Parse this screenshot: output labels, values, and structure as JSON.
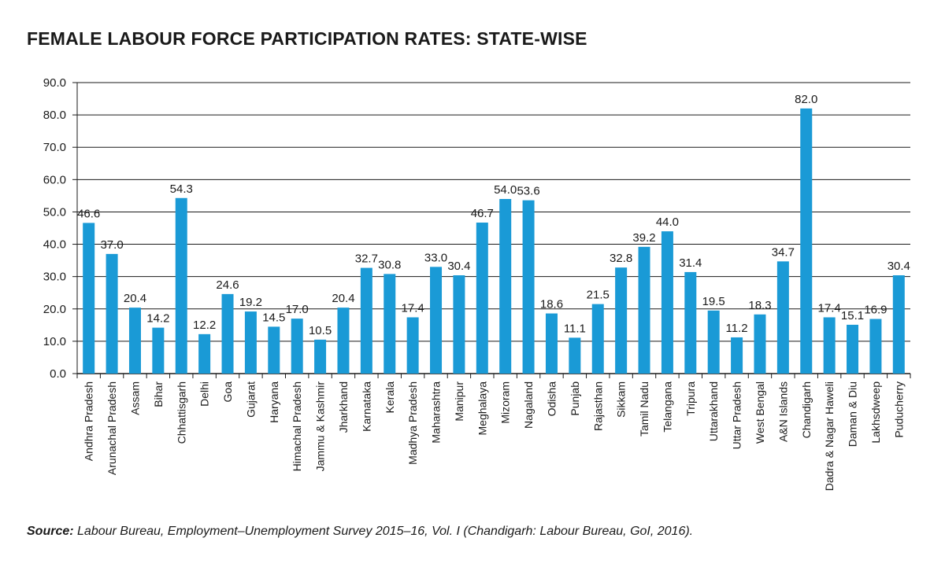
{
  "chart_data": {
    "type": "bar",
    "title": "FEMALE LABOUR FORCE PARTICIPATION RATES: STATE-WISE",
    "ylim": [
      0,
      90
    ],
    "yticks": [
      "0.0",
      "10.0",
      "20.0",
      "30.0",
      "40.0",
      "50.0",
      "60.0",
      "70.0",
      "80.0",
      "90.0"
    ],
    "grid": true,
    "bar_color": "#1a9ad6",
    "categories": [
      "Andhra Pradesh",
      "Arunachal Pradesh",
      "Assam",
      "Bihar",
      "Chhattisgarh",
      "Delhi",
      "Goa",
      "Gujarat",
      "Haryana",
      "Himachal Pradesh",
      "Jammu & Kashmir",
      "Jharkhand",
      "Karnataka",
      "Kerala",
      "Madhya Pradesh",
      "Maharashtra",
      "Manipur",
      "Meghalaya",
      "Mizoram",
      "Nagaland",
      "Odisha",
      "Punjab",
      "Rajasthan",
      "Sikkam",
      "Tamil Nadu",
      "Telangana",
      "Tripura",
      "Uttarakhand",
      "Uttar Pradesh",
      "West Bengal",
      "A&N Islands",
      "Chandigarh",
      "Dadra & Nagar Haweli",
      "Daman & Diu",
      "Lakhsdweep",
      "Puducherry"
    ],
    "values": [
      46.6,
      37.0,
      20.4,
      14.2,
      54.3,
      12.2,
      24.6,
      19.2,
      14.5,
      17.0,
      10.5,
      20.4,
      32.7,
      30.8,
      17.4,
      33.0,
      30.4,
      46.7,
      54.0,
      53.6,
      18.6,
      11.1,
      21.5,
      32.8,
      39.2,
      44.0,
      31.4,
      19.5,
      11.2,
      18.3,
      34.7,
      82.0,
      17.4,
      15.1,
      16.9,
      30.4
    ],
    "value_labels": [
      "46.6",
      "37.0",
      "20.4",
      "14.2",
      "54.3",
      "12.2",
      "24.6",
      "19.2",
      "14.5",
      "17.0",
      "10.5",
      "20.4",
      "32.7",
      "30.8",
      "17.4",
      "33.0",
      "30.4",
      "46.7",
      "54.0",
      "53.6",
      "18.6",
      "11.1",
      "21.5",
      "32.8",
      "39.2",
      "44.0",
      "31.4",
      "19.5",
      "11.2",
      "18.3",
      "34.7",
      "82.0",
      "17.4",
      "15.1",
      "16.9",
      "30.4"
    ]
  },
  "source": {
    "label": "Source:",
    "text": " Labour Bureau, Employment–Unemployment Survey 2015–16, Vol. I (Chandigarh: Labour Bureau, GoI, 2016)."
  }
}
